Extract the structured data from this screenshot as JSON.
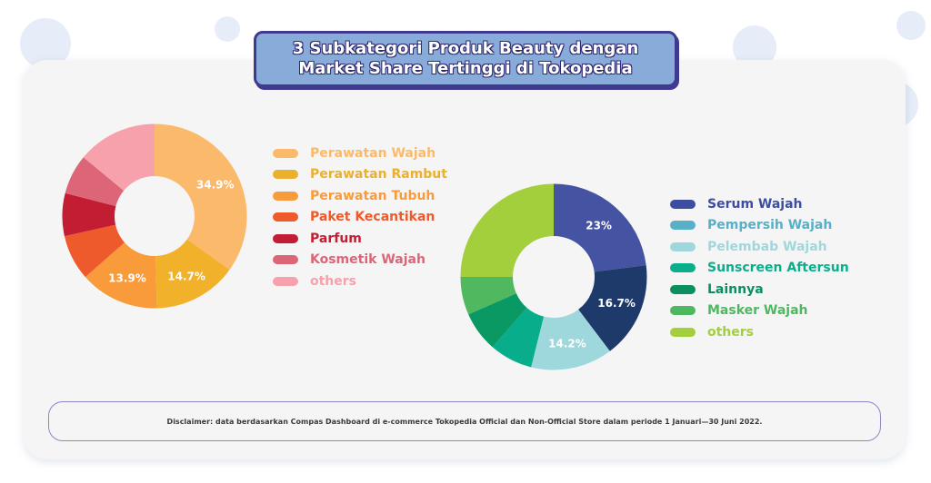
{
  "title": {
    "line1": "3 Subkategori Produk Beauty dengan",
    "line2": "Market Share Tertinggi di Tokopedia"
  },
  "chart_data": [
    {
      "type": "pie",
      "style": "donut",
      "series": [
        {
          "label": "Perawatan Wajah",
          "value": 34.9,
          "color": "#fbb96b",
          "value_label": "34.9%"
        },
        {
          "label": "Perawatan Rambut",
          "value": 14.7,
          "color": "#f2b12b",
          "value_label": "14.7%"
        },
        {
          "label": "Perawatan Tubuh",
          "value": 13.9,
          "color": "#f99b3a",
          "value_label": "13.9%"
        },
        {
          "label": "Paket Kecantikan",
          "value": 8.0,
          "color": "#ee5a2b",
          "value_label": ""
        },
        {
          "label": "Parfum",
          "value": 7.5,
          "color": "#c31d33",
          "value_label": ""
        },
        {
          "label": "Kosmetik Wajah",
          "value": 7.0,
          "color": "#dc6677",
          "value_label": ""
        },
        {
          "label": "others",
          "value": 14.0,
          "color": "#f7a1ad",
          "value_label": ""
        }
      ],
      "legend_position": "right"
    },
    {
      "type": "pie",
      "style": "donut",
      "series": [
        {
          "label": "Serum Wajah",
          "value": 23.0,
          "color": "#4553a3",
          "value_label": "23%"
        },
        {
          "label": "Pempersih Wajah",
          "value": 16.7,
          "color": "#1e3a6b",
          "value_label": "16.7%"
        },
        {
          "label": "Pelembab Wajah",
          "value": 14.2,
          "color": "#9fd8dc",
          "value_label": "14.2%"
        },
        {
          "label": "Sunscreen Aftersun",
          "value": 7.5,
          "color": "#08ad8c",
          "value_label": ""
        },
        {
          "label": "Lainnya",
          "value": 7.0,
          "color": "#0a9863",
          "value_label": ""
        },
        {
          "label": "Masker Wajah",
          "value": 6.6,
          "color": "#50b95f",
          "value_label": ""
        },
        {
          "label": "others",
          "value": 25.0,
          "color": "#a4cf3c",
          "value_label": ""
        }
      ],
      "legend_position": "right"
    }
  ],
  "legend1_colors": [
    "#fbb96b",
    "#ecb02f",
    "#f99b3a",
    "#ee5a2b",
    "#c31d33",
    "#dc6677",
    "#f7a1ad"
  ],
  "legend2_colors": [
    "#3d4da0",
    "#57afc8",
    "#9fd8dc",
    "#0aae8b",
    "#0a8f5e",
    "#4db85f",
    "#a4cf3c"
  ],
  "disclaimer": "Disclaimer: data berdasarkan Compas Dashboard di e-commerce Tokopedia Official dan Non-Official Store dalam periode 1 Januari—30 Juni 2022."
}
